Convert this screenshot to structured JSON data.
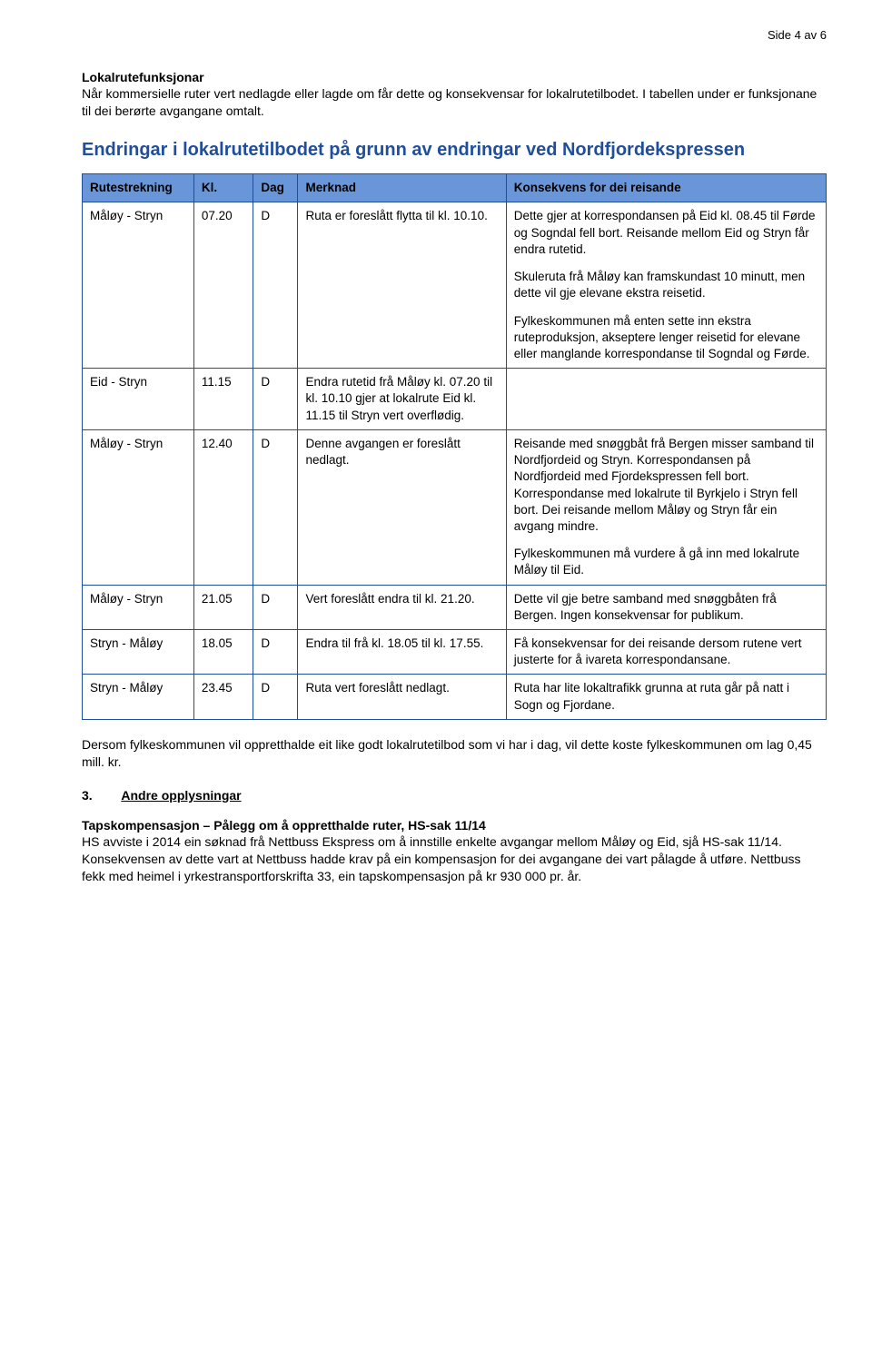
{
  "page_number": "Side 4 av 6",
  "intro": {
    "heading": "Lokalrutefunksjonar",
    "body": "Når kommersielle ruter vert nedlagde eller lagde om får dette og konsekvensar for lokalrutetilbodet. I tabellen under er funksjonane til dei berørte avgangane omtalt."
  },
  "table_title": "Endringar  i lokalrutetilbodet på grunn av endringar ved Nordfjordekspressen",
  "headers": {
    "rute": "Rutestrekning",
    "kl": "Kl.",
    "dag": "Dag",
    "merknad": "Merknad",
    "konsekvens": "Konsekvens for dei reisande"
  },
  "rows": [
    {
      "rute": "Måløy - Stryn",
      "kl": "07.20",
      "dag": "D",
      "merknad": "Ruta er foreslått flytta til kl. 10.10.",
      "kons_paras": [
        "Dette gjer at korrespondansen på Eid kl. 08.45 til Førde og Sogndal fell bort. Reisande mellom Eid og Stryn får endra rutetid.",
        "Skuleruta frå Måløy kan framskundast 10 minutt, men dette vil gje elevane ekstra reisetid.",
        "Fylkeskommunen må enten sette inn ekstra ruteproduksjon, akseptere lenger reisetid for elevane eller manglande korrespondanse til Sogndal og Førde."
      ]
    },
    {
      "rute": "Eid - Stryn",
      "kl": "11.15",
      "dag": "D",
      "merknad": "Endra rutetid frå Måløy kl. 07.20 til kl. 10.10 gjer at lokalrute Eid kl. 11.15 til Stryn vert overflødig.",
      "kons_paras": [
        ""
      ]
    },
    {
      "rute": "Måløy - Stryn",
      "kl": "12.40",
      "dag": "D",
      "merknad": " Denne avgangen er foreslått nedlagt.",
      "kons_paras": [
        "Reisande med snøggbåt frå Bergen misser samband til Nordfjordeid og Stryn. Korrespondansen på Nordfjordeid med Fjordekspressen fell bort. Korrespondanse med lokalrute til Byrkjelo i Stryn fell bort. Dei reisande mellom Måløy og Stryn får ein avgang mindre.",
        "Fylkeskommunen må vurdere å gå inn med lokalrute Måløy til Eid."
      ]
    },
    {
      "rute": "Måløy - Stryn",
      "kl": "21.05",
      "dag": "D",
      "merknad": "Vert foreslått endra til kl. 21.20.",
      "kons_paras": [
        "Dette vil gje betre samband med snøggbåten frå Bergen. Ingen konsekvensar for publikum."
      ]
    },
    {
      "rute": "Stryn - Måløy",
      "kl": "18.05",
      "dag": "D",
      "merknad": "Endra til frå kl. 18.05 til kl. 17.55.",
      "kons_paras": [
        "Få konsekvensar for dei reisande dersom rutene vert justerte for å ivareta korrespondansane."
      ]
    },
    {
      "rute": "Stryn - Måløy",
      "kl": "23.45",
      "dag": "D",
      "merknad": " Ruta vert foreslått nedlagt.",
      "kons_paras": [
        "Ruta har lite lokaltrafikk grunna at ruta går på natt i Sogn og Fjordane."
      ]
    }
  ],
  "after_table": "Dersom fylkeskommunen vil oppretthalde eit like godt lokalrutetilbod som vi har i dag, vil dette koste fylkeskommunen om lag 0,45 mill. kr.",
  "section3": {
    "num": "3.",
    "title": "Andre opplysningar",
    "sub_heading": "Tapskompensasjon – Pålegg om å oppretthalde ruter, HS-sak 11/14",
    "body": "HS avviste i 2014 ein søknad frå Nettbuss Ekspress om å innstille enkelte avgangar mellom Måløy og Eid, sjå HS-sak 11/14. Konsekvensen av dette vart at Nettbuss hadde krav på ein kompensasjon for dei avgangane dei vart pålagde å utføre. Nettbuss fekk med heimel i yrkestransportforskrifta 33, ein tapskompensasjon på kr 930 000 pr. år."
  }
}
